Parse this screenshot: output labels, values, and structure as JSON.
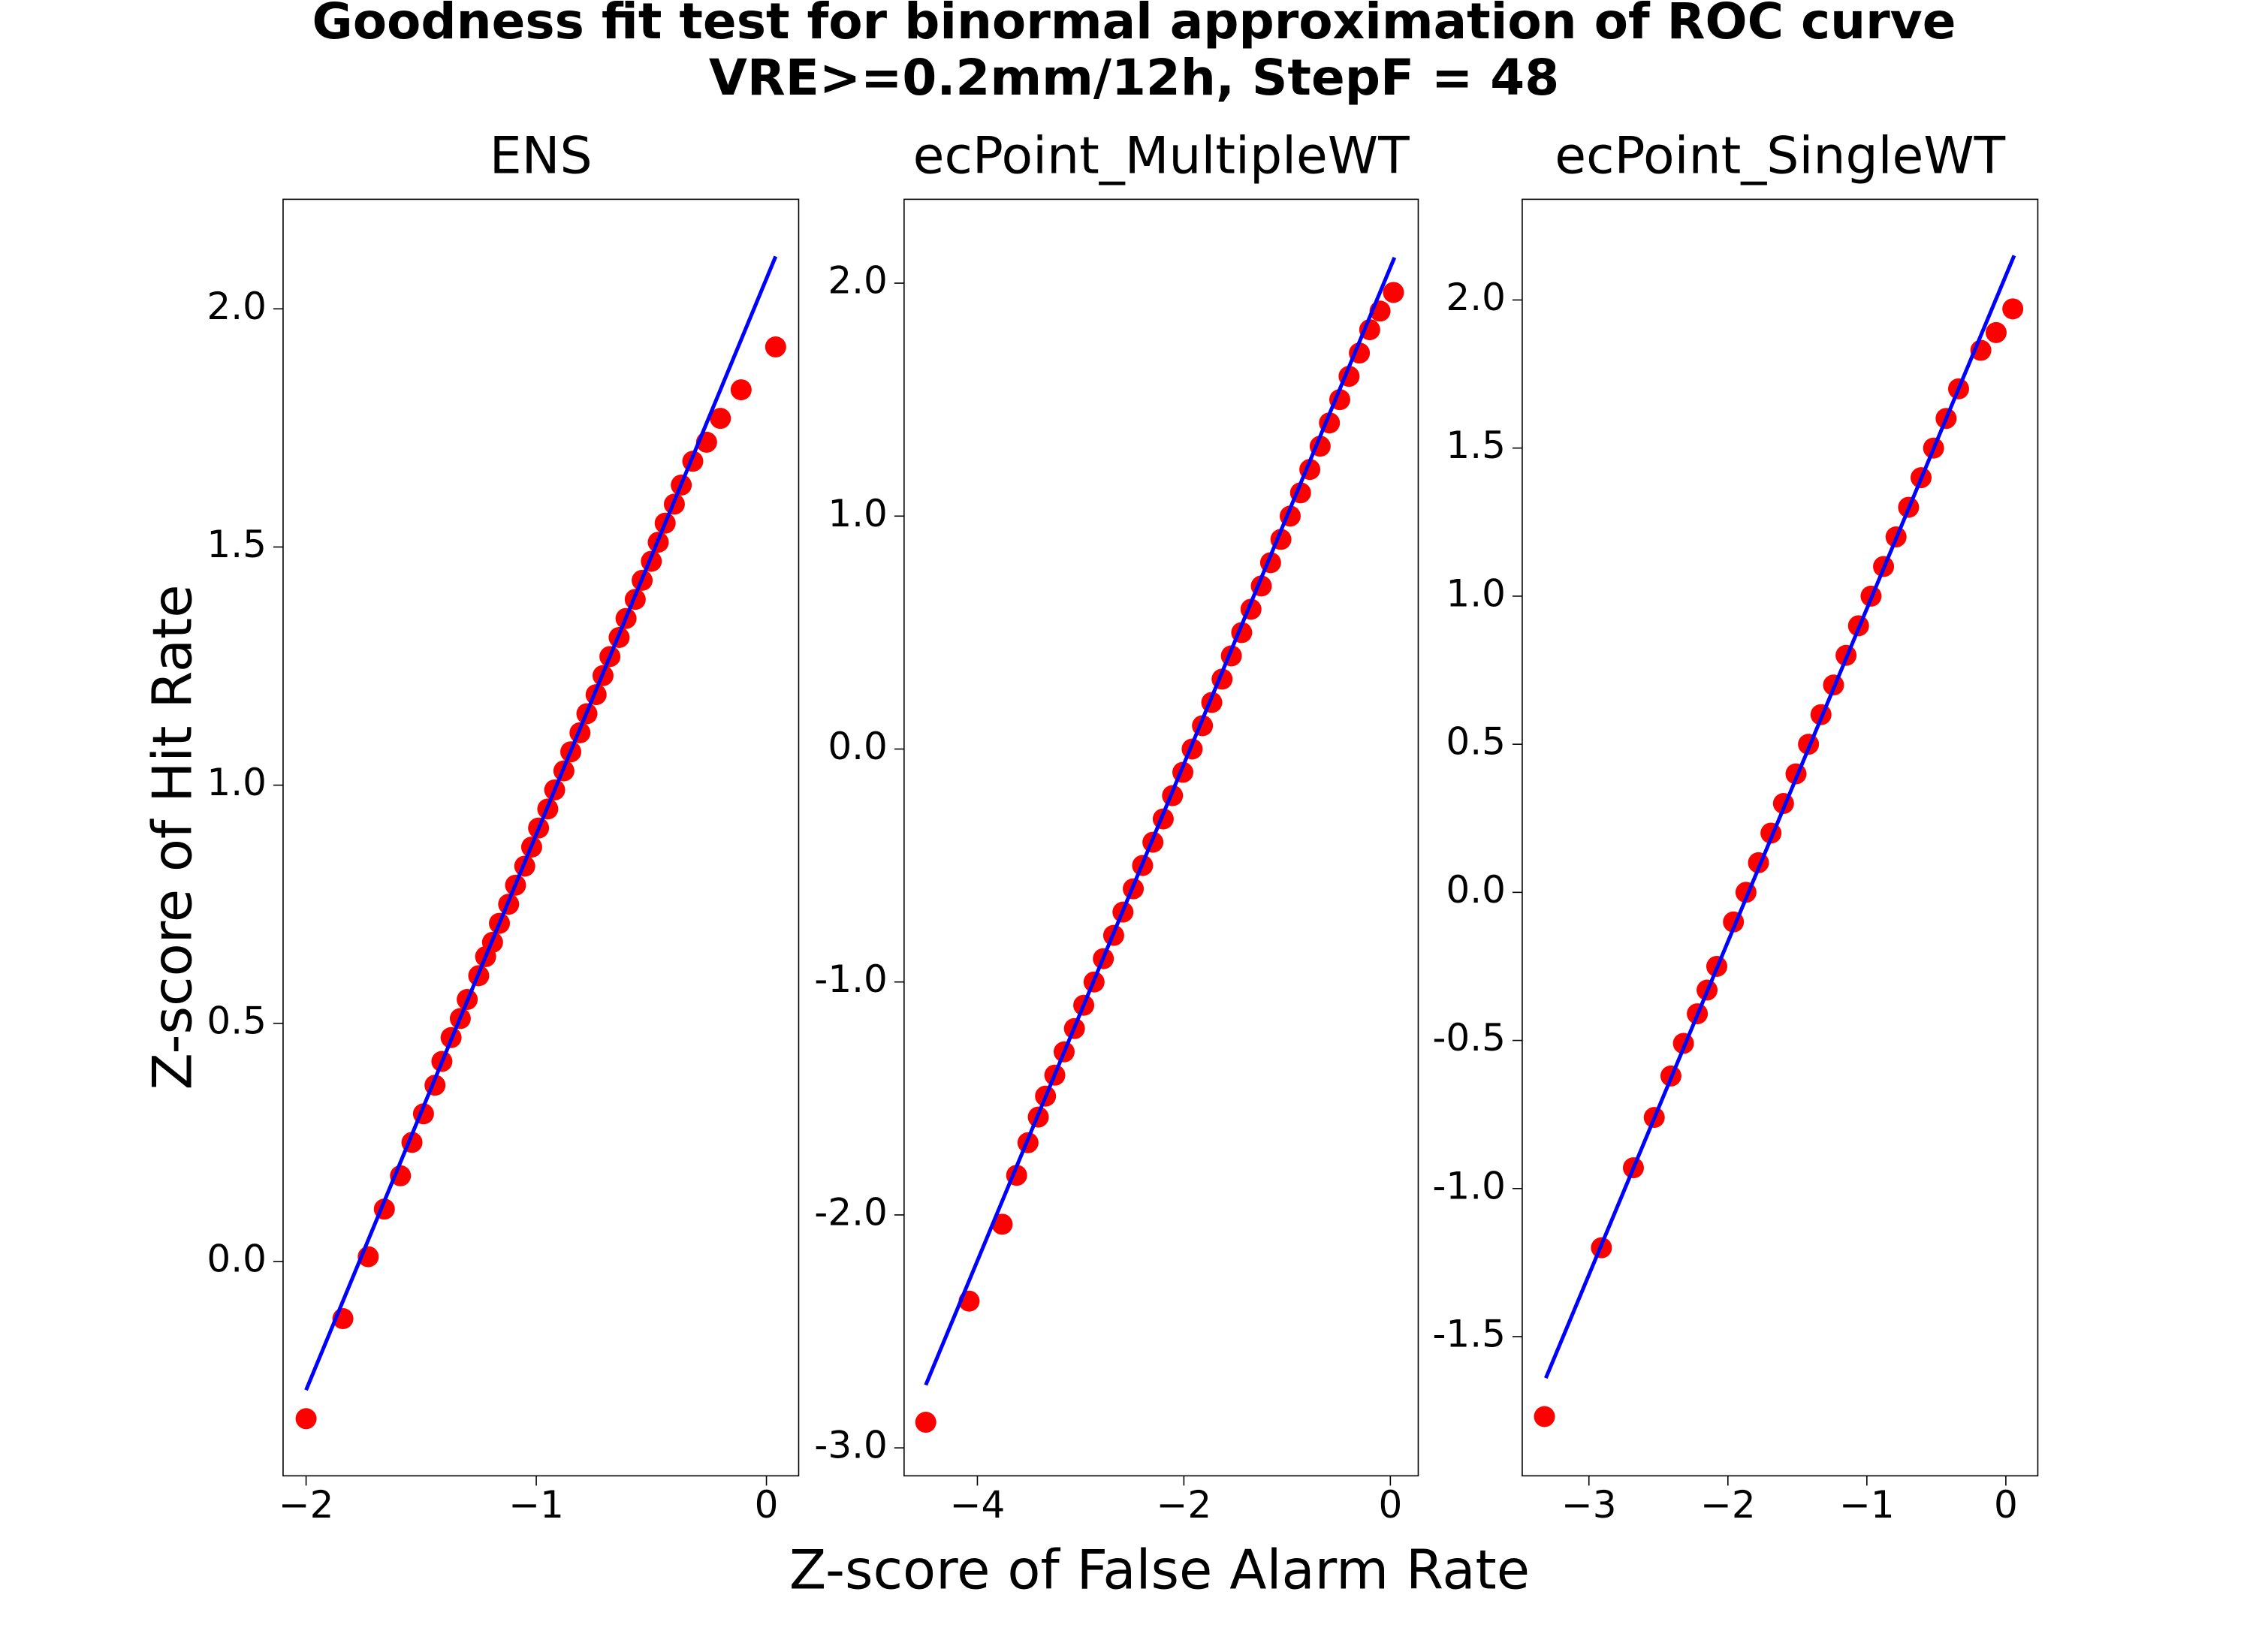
{
  "title": "Goodness fit test for binormal approximation of ROC curve",
  "subtitle": "VRE>=0.2mm/12h, StepF = 48",
  "x_label": "Z-score of False Alarm Rate",
  "y_label": "Z-score of Hit Rate",
  "chart_data": [
    {
      "type": "scatter",
      "title": "ENS",
      "xlim": [
        -2.1,
        0.14
      ],
      "ylim": [
        -0.45,
        2.23
      ],
      "xticks": [
        {
          "value": -2,
          "label": "−2"
        },
        {
          "value": -1,
          "label": "−1"
        },
        0
      ],
      "yticks": [
        {
          "value": 0,
          "label": "0.0"
        },
        0.5,
        {
          "value": 1,
          "label": "1.0"
        },
        1.5,
        {
          "value": 2,
          "label": "2.0"
        }
      ],
      "series": [
        {
          "type": "scatter",
          "color": "#ff0000",
          "x": [
            -2.0,
            -1.84,
            -1.73,
            -1.66,
            -1.59,
            -1.54,
            -1.49,
            -1.44,
            -1.41,
            -1.37,
            -1.33,
            -1.3,
            -1.25,
            -1.22,
            -1.19,
            -1.16,
            -1.12,
            -1.09,
            -1.05,
            -1.02,
            -0.99,
            -0.95,
            -0.92,
            -0.88,
            -0.85,
            -0.81,
            -0.78,
            -0.74,
            -0.71,
            -0.68,
            -0.64,
            -0.61,
            -0.57,
            -0.54,
            -0.5,
            -0.47,
            -0.44,
            -0.4,
            -0.37,
            -0.32,
            -0.26,
            -0.2,
            -0.11,
            0.04
          ],
          "values": [
            -0.33,
            -0.12,
            0.01,
            0.11,
            0.18,
            0.25,
            0.31,
            0.37,
            0.42,
            0.47,
            0.51,
            0.55,
            0.6,
            0.64,
            0.67,
            0.71,
            0.75,
            0.79,
            0.83,
            0.87,
            0.91,
            0.95,
            0.99,
            1.03,
            1.07,
            1.11,
            1.15,
            1.19,
            1.23,
            1.27,
            1.31,
            1.35,
            1.39,
            1.43,
            1.47,
            1.51,
            1.55,
            1.59,
            1.63,
            1.68,
            1.72,
            1.77,
            1.83,
            1.92
          ]
        },
        {
          "type": "line",
          "color": "#0000ff",
          "x": [
            -2.0,
            0.04
          ],
          "values": [
            -0.27,
            2.11
          ]
        }
      ]
    },
    {
      "type": "scatter",
      "title": "ecPoint_MultipleWT",
      "xlim": [
        -4.71,
        0.27
      ],
      "ylim": [
        -3.12,
        2.36
      ],
      "xticks": [
        {
          "value": -4,
          "label": "−4"
        },
        {
          "value": -2,
          "label": "−2"
        },
        0
      ],
      "yticks": [
        {
          "value": -3,
          "label": "-3.0"
        },
        {
          "value": -2,
          "label": "-2.0"
        },
        {
          "value": -1,
          "label": "-1.0"
        },
        {
          "value": 0,
          "label": "0.0"
        },
        {
          "value": 1,
          "label": "1.0"
        },
        {
          "value": 2,
          "label": "2.0"
        }
      ],
      "series": [
        {
          "type": "scatter",
          "color": "#ff0000",
          "x": [
            -4.5,
            -4.08,
            -3.76,
            -3.62,
            -3.51,
            -3.41,
            -3.34,
            -3.25,
            -3.16,
            -3.06,
            -2.97,
            -2.87,
            -2.78,
            -2.68,
            -2.59,
            -2.49,
            -2.4,
            -2.3,
            -2.2,
            -2.11,
            -2.01,
            -1.92,
            -1.82,
            -1.73,
            -1.63,
            -1.54,
            -1.44,
            -1.35,
            -1.25,
            -1.16,
            -1.06,
            -0.97,
            -0.87,
            -0.78,
            -0.68,
            -0.59,
            -0.49,
            -0.4,
            -0.3,
            -0.2,
            -0.1,
            0.03
          ],
          "values": [
            -2.89,
            -2.37,
            -2.04,
            -1.83,
            -1.69,
            -1.58,
            -1.49,
            -1.4,
            -1.3,
            -1.2,
            -1.1,
            -1.0,
            -0.9,
            -0.8,
            -0.7,
            -0.6,
            -0.5,
            -0.4,
            -0.3,
            -0.2,
            -0.1,
            0,
            0.1,
            0.2,
            0.3,
            0.4,
            0.5,
            0.6,
            0.7,
            0.8,
            0.9,
            1.0,
            1.1,
            1.2,
            1.3,
            1.4,
            1.5,
            1.6,
            1.7,
            1.8,
            1.88,
            1.96
          ]
        },
        {
          "type": "line",
          "color": "#0000ff",
          "x": [
            -4.5,
            0.04
          ],
          "values": [
            -2.73,
            2.11
          ]
        }
      ]
    },
    {
      "type": "scatter",
      "title": "ecPoint_SingleWT",
      "xlim": [
        -3.48,
        0.23
      ],
      "ylim": [
        -1.97,
        2.34
      ],
      "xticks": [
        {
          "value": -3,
          "label": "−3"
        },
        {
          "value": -2,
          "label": "−2"
        },
        {
          "value": -1,
          "label": "−1"
        },
        0
      ],
      "yticks": [
        -1.5,
        {
          "value": -1,
          "label": "-1.0"
        },
        -0.5,
        {
          "value": 0,
          "label": "0.0"
        },
        0.5,
        {
          "value": 1,
          "label": "1.0"
        },
        1.5,
        {
          "value": 2,
          "label": "2.0"
        }
      ],
      "series": [
        {
          "type": "scatter",
          "color": "#ff0000",
          "x": [
            -3.32,
            -2.91,
            -2.68,
            -2.53,
            -2.41,
            -2.32,
            -2.22,
            -2.15,
            -2.08,
            -1.96,
            -1.87,
            -1.78,
            -1.69,
            -1.6,
            -1.51,
            -1.42,
            -1.33,
            -1.24,
            -1.15,
            -1.06,
            -0.97,
            -0.88,
            -0.79,
            -0.7,
            -0.61,
            -0.52,
            -0.43,
            -0.34,
            -0.18,
            -0.07,
            0.05
          ],
          "values": [
            -1.77,
            -1.2,
            -0.93,
            -0.76,
            -0.62,
            -0.51,
            -0.41,
            -0.33,
            -0.25,
            -0.1,
            0,
            0.1,
            0.2,
            0.3,
            0.4,
            0.5,
            0.6,
            0.7,
            0.8,
            0.9,
            1.0,
            1.1,
            1.2,
            1.3,
            1.4,
            1.5,
            1.6,
            1.7,
            1.83,
            1.89,
            1.97
          ]
        },
        {
          "type": "line",
          "color": "#0000ff",
          "x": [
            -3.31,
            0.06
          ],
          "values": [
            -1.64,
            2.15
          ]
        }
      ]
    }
  ]
}
